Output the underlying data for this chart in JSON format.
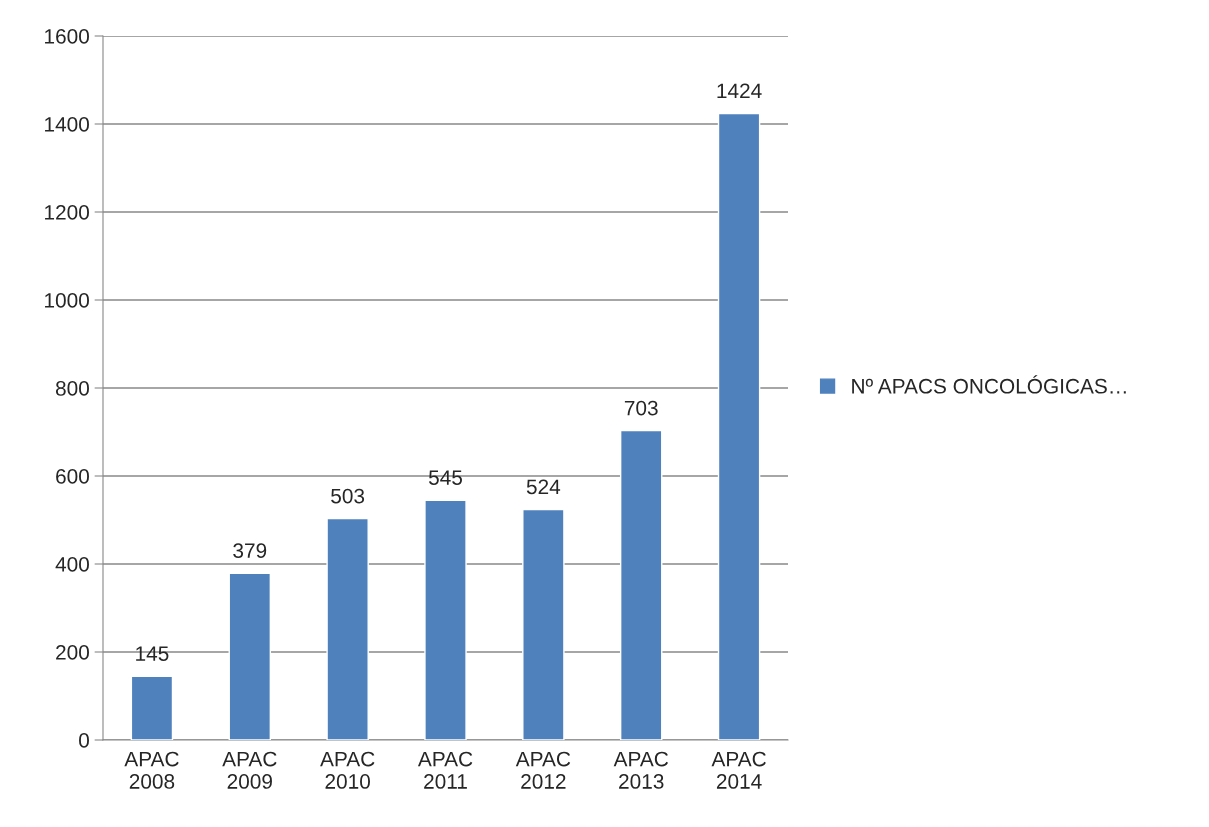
{
  "chart_data": {
    "type": "bar",
    "categories": [
      "APAC\n2008",
      "APAC\n2009",
      "APAC\n2010",
      "APAC\n2011",
      "APAC\n2012",
      "APAC\n2013",
      "APAC\n2014"
    ],
    "series": [
      {
        "name": "Nº APACS ONCOLÓGICAS…",
        "color": "#4f81bd",
        "values": [
          145,
          379,
          503,
          545,
          524,
          703,
          1424
        ]
      }
    ],
    "ylim": [
      0,
      1600
    ],
    "yticks": [
      0,
      200,
      400,
      600,
      800,
      1000,
      1200,
      1400,
      1600
    ],
    "grid": "y",
    "legend": "right",
    "data_labels": true
  }
}
